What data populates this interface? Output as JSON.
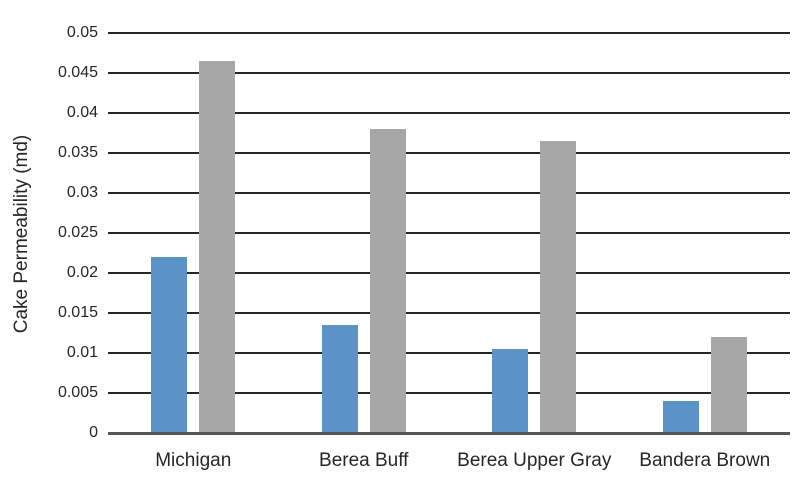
{
  "chart_data": {
    "type": "bar",
    "title": "",
    "categories": [
      "Michigan",
      "Berea Buff",
      "Berea Upper Gray",
      "Bandera Brown"
    ],
    "series": [
      {
        "name": "blue",
        "color": "#5b93c6",
        "values": [
          0.022,
          0.0135,
          0.0105,
          0.004
        ]
      },
      {
        "name": "gray",
        "color": "#a7a7a7",
        "values": [
          0.0465,
          0.038,
          0.0365,
          0.012
        ]
      }
    ],
    "xlabel": "",
    "ylabel": "Cake Permeability (md)",
    "ylim": [
      0,
      0.05
    ],
    "ytick_step": 0.005,
    "ytick_labels": [
      "0",
      "0.005",
      "0.01",
      "0.015",
      "0.02",
      "0.025",
      "0.03",
      "0.035",
      "0.04",
      "0.045",
      "0.05"
    ],
    "grid": true,
    "legend_position": "none",
    "gridline_color": "#262626",
    "axis_line_color": "#565656",
    "text_color": "#262626",
    "background_color": "#ffffff"
  }
}
